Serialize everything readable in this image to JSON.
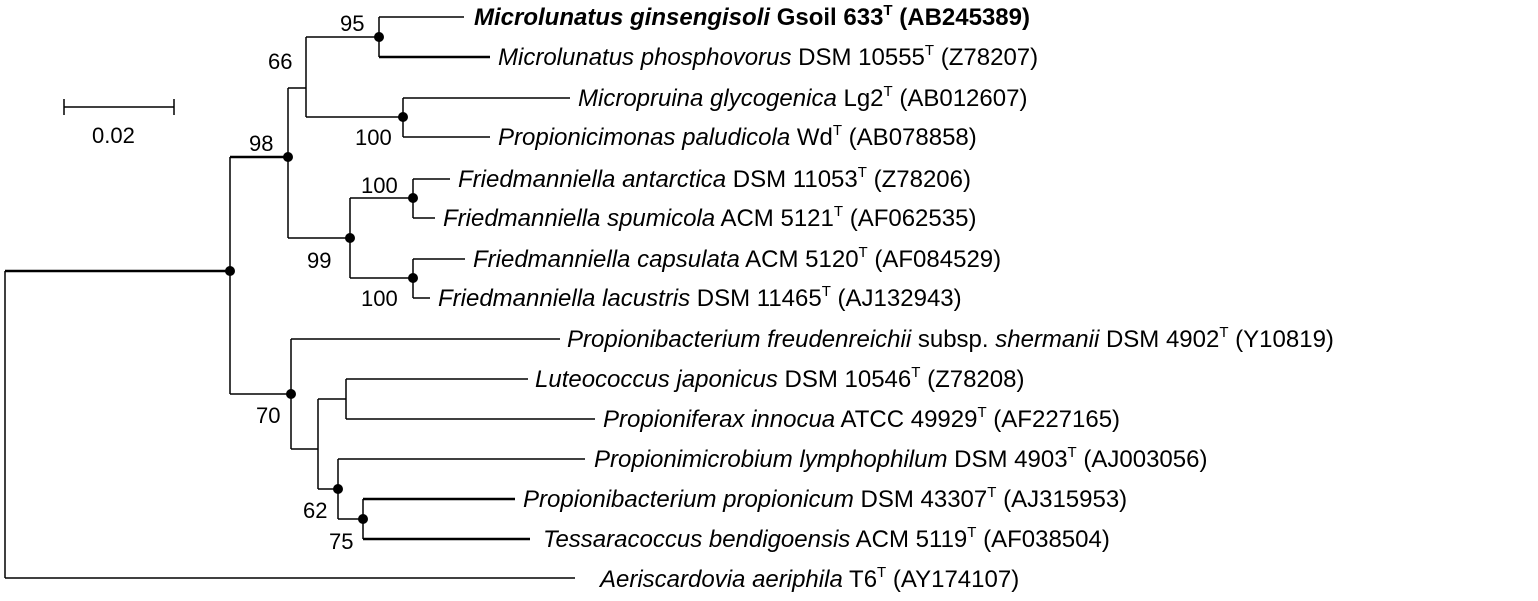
{
  "scale_bar": {
    "label": "0.02"
  },
  "taxa": [
    {
      "genus": "Microlunatus ginsengisoli",
      "strain": " Gsoil 633",
      "type_mark": "T",
      "accession": " (AB245389)",
      "bold": true
    },
    {
      "genus": "Microlunatus phosphovorus",
      "strain": " DSM 10555",
      "type_mark": "T",
      "accession": " (Z78207)"
    },
    {
      "genus": "Micropruina glycogenica",
      "strain": " Lg2",
      "type_mark": "T",
      "accession": " (AB012607)"
    },
    {
      "genus": "Propionicimonas paludicola",
      "strain": " Wd",
      "type_mark": "T",
      "accession": " (AB078858)"
    },
    {
      "genus": "Friedmanniella antarctica",
      "strain": " DSM 11053",
      "type_mark": "T",
      "accession": " (Z78206)"
    },
    {
      "genus": "Friedmanniella spumicola",
      "strain": " ACM 5121",
      "type_mark": "T",
      "accession": " (AF062535)"
    },
    {
      "genus": "Friedmanniella capsulata",
      "strain": " ACM 5120",
      "type_mark": "T",
      "accession": " (AF084529)"
    },
    {
      "genus": "Friedmanniella lacustris",
      "strain": " DSM 11465",
      "type_mark": "T",
      "accession": " (AJ132943)"
    },
    {
      "genus": "Propionibacterium freudenreichii",
      "subsp": " subsp. ",
      "subsp_name": "shermanii",
      "strain": " DSM 4902",
      "type_mark": "T",
      "accession": " (Y10819)"
    },
    {
      "genus": "Luteococcus japonicus",
      "strain": " DSM 10546",
      "type_mark": "T",
      "accession": " (Z78208)"
    },
    {
      "genus": "Propioniferax innocua",
      "strain": " ATCC 49929",
      "type_mark": "T",
      "accession": " (AF227165)"
    },
    {
      "genus": "Propionimicrobium lymphophilum",
      "strain": " DSM 4903",
      "type_mark": "T",
      "accession": " (AJ003056)"
    },
    {
      "genus": "Propionibacterium propionicum",
      "strain": " DSM 43307",
      "type_mark": "T",
      "accession": " (AJ315953)"
    },
    {
      "genus": "Tessaracoccus bendigoensis",
      "strain": " ACM 5119",
      "type_mark": "T",
      "accession": " (AF038504)"
    },
    {
      "genus": "Aeriscardovia aeriphila",
      "strain": " T6",
      "type_mark": "T",
      "accession": " (AY174107)"
    }
  ],
  "bootstrap": [
    "95",
    "66",
    "100",
    "98",
    "100",
    "99",
    "100",
    "70",
    "62",
    "75"
  ]
}
